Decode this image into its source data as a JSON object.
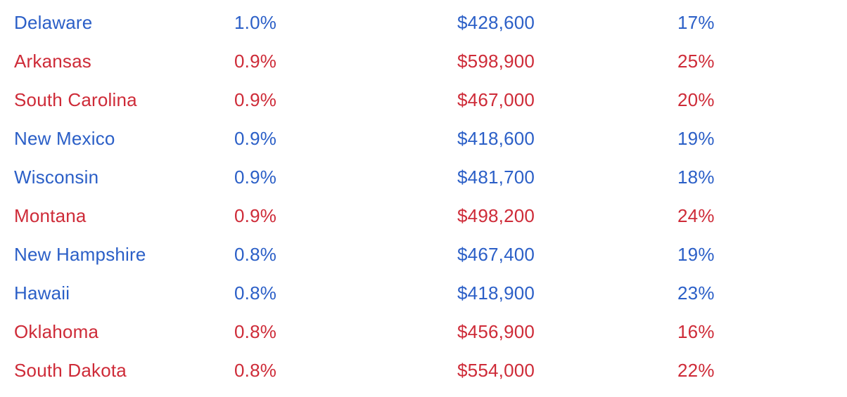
{
  "chart_data": {
    "type": "table",
    "headers_visible": false,
    "colors": {
      "blue": "#2B5FC7",
      "red": "#CE2B38",
      "background": "#FFFFFF"
    },
    "rows": [
      {
        "state": "Delaware",
        "color": "blue",
        "values": [
          "1.0%",
          "$428,600",
          "17%"
        ]
      },
      {
        "state": "Arkansas",
        "color": "red",
        "values": [
          "0.9%",
          "$598,900",
          "25%"
        ]
      },
      {
        "state": "South Carolina",
        "color": "red",
        "values": [
          "0.9%",
          "$467,000",
          "20%"
        ]
      },
      {
        "state": "New Mexico",
        "color": "blue",
        "values": [
          "0.9%",
          "$418,600",
          "19%"
        ]
      },
      {
        "state": "Wisconsin",
        "color": "blue",
        "values": [
          "0.9%",
          "$481,700",
          "18%"
        ]
      },
      {
        "state": "Montana",
        "color": "red",
        "values": [
          "0.9%",
          "$498,200",
          "24%"
        ]
      },
      {
        "state": "New Hampshire",
        "color": "blue",
        "values": [
          "0.8%",
          "$467,400",
          "19%"
        ]
      },
      {
        "state": "Hawaii",
        "color": "blue",
        "values": [
          "0.8%",
          "$418,900",
          "23%"
        ]
      },
      {
        "state": "Oklahoma",
        "color": "red",
        "values": [
          "0.8%",
          "$456,900",
          "16%"
        ]
      },
      {
        "state": "South Dakota",
        "color": "red",
        "values": [
          "0.8%",
          "$554,000",
          "22%"
        ]
      }
    ]
  }
}
